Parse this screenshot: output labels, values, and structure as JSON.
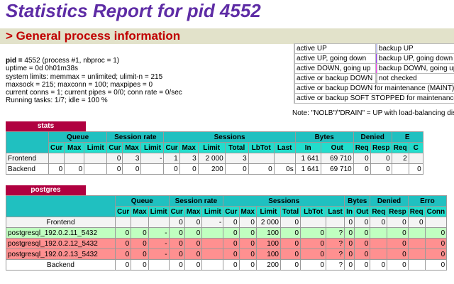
{
  "page": {
    "title": "Statistics Report for pid 4552"
  },
  "general": {
    "section_title": "> General process information",
    "info_lines": [
      "pid = 4552 (process #1, nbproc = 1)",
      "uptime = 0d 0h01m38s",
      "system limits: memmax = unlimited; ulimit-n = 215",
      "maxsock = 215; maxconn = 100; maxpipes = 0",
      "current conns = 1; current pipes = 0/0; conn rate = 0/sec",
      "Running tasks: 1/7; idle = 100 %"
    ]
  },
  "legend": {
    "rows": [
      {
        "color1": "#80ff80",
        "label1": "active UP",
        "color2": "#c0c0ff",
        "label2": "backup UP"
      },
      {
        "color1": "#ffff80",
        "label1": "active UP, going down",
        "color2": "#a040ff",
        "label2": "backup UP, going down"
      },
      {
        "color1": "#ffb000",
        "label1": "active DOWN, going up",
        "color2": "#ff40ff",
        "label2": "backup DOWN, going up"
      },
      {
        "color1": "#ff8080",
        "label1": "active or backup DOWN",
        "color2": "#c0c0c0",
        "label2": "not checked"
      },
      {
        "color1": "#c06060",
        "label1": "active or backup DOWN for maintenance (MAINT)",
        "color2": "",
        "label2": ""
      },
      {
        "color1": "#1080ff",
        "label1": "active or backup SOFT STOPPED for maintenance",
        "color2": "",
        "label2": ""
      }
    ],
    "note": "Note: \"NOLB\"/\"DRAIN\" = UP with load-balancing disabled."
  },
  "stats_proxy": {
    "name": "stats",
    "header_groups": [
      "",
      "Queue",
      "Session rate",
      "Sessions",
      "Bytes",
      "Denied",
      "E"
    ],
    "columns": [
      "",
      "Cur",
      "Max",
      "Limit",
      "Cur",
      "Max",
      "Limit",
      "Cur",
      "Max",
      "Limit",
      "Total",
      "LbTot",
      "Last",
      "In",
      "Out",
      "Req",
      "Resp",
      "Req",
      "C"
    ],
    "rows": [
      {
        "name": "Frontend",
        "cells": [
          "",
          "",
          "",
          "0",
          "3",
          "-",
          "1",
          "3",
          "2 000",
          "3",
          "",
          "",
          "1 641",
          "69 710",
          "0",
          "0",
          "2",
          ""
        ]
      },
      {
        "name": "Backend",
        "cells": [
          "0",
          "0",
          "",
          "0",
          "0",
          "",
          "0",
          "0",
          "200",
          "0",
          "0",
          "0s",
          "1 641",
          "69 710",
          "0",
          "0",
          "",
          "0"
        ]
      }
    ]
  },
  "postgres_proxy": {
    "name": "postgres",
    "header_groups": [
      "",
      "Queue",
      "Session rate",
      "Sessions",
      "Bytes",
      "Denied",
      "Erro"
    ],
    "columns": [
      "",
      "Cur",
      "Max",
      "Limit",
      "Cur",
      "Max",
      "Limit",
      "Cur",
      "Max",
      "Limit",
      "Total",
      "LbTot",
      "Last",
      "In",
      "Out",
      "Req",
      "Resp",
      "Req",
      "Conn"
    ],
    "rows": [
      {
        "name": "Frontend",
        "type": "frontend",
        "cells": [
          "",
          "",
          "",
          "0",
          "0",
          "-",
          "0",
          "0",
          "2 000",
          "0",
          "",
          "",
          "0",
          "0",
          "0",
          "0",
          "0",
          ""
        ]
      },
      {
        "name": "postgresql_192.0.2.11_5432",
        "type": "up",
        "cells": [
          "0",
          "0",
          "-",
          "0",
          "0",
          "",
          "0",
          "0",
          "100",
          "0",
          "0",
          "?",
          "0",
          "0",
          "",
          "0",
          "",
          "0"
        ]
      },
      {
        "name": "postgresql_192.0.2.12_5432",
        "type": "down",
        "cells": [
          "0",
          "0",
          "-",
          "0",
          "0",
          "",
          "0",
          "0",
          "100",
          "0",
          "0",
          "?",
          "0",
          "0",
          "",
          "0",
          "",
          "0"
        ]
      },
      {
        "name": "postgresql_192.0.2.13_5432",
        "type": "down",
        "cells": [
          "0",
          "0",
          "-",
          "0",
          "0",
          "",
          "0",
          "0",
          "100",
          "0",
          "0",
          "?",
          "0",
          "0",
          "",
          "0",
          "",
          "0"
        ]
      },
      {
        "name": "Backend",
        "type": "backend",
        "cells": [
          "0",
          "0",
          "",
          "0",
          "0",
          "",
          "0",
          "0",
          "200",
          "0",
          "0",
          "?",
          "0",
          "0",
          "0",
          "0",
          "",
          "0"
        ]
      }
    ]
  }
}
